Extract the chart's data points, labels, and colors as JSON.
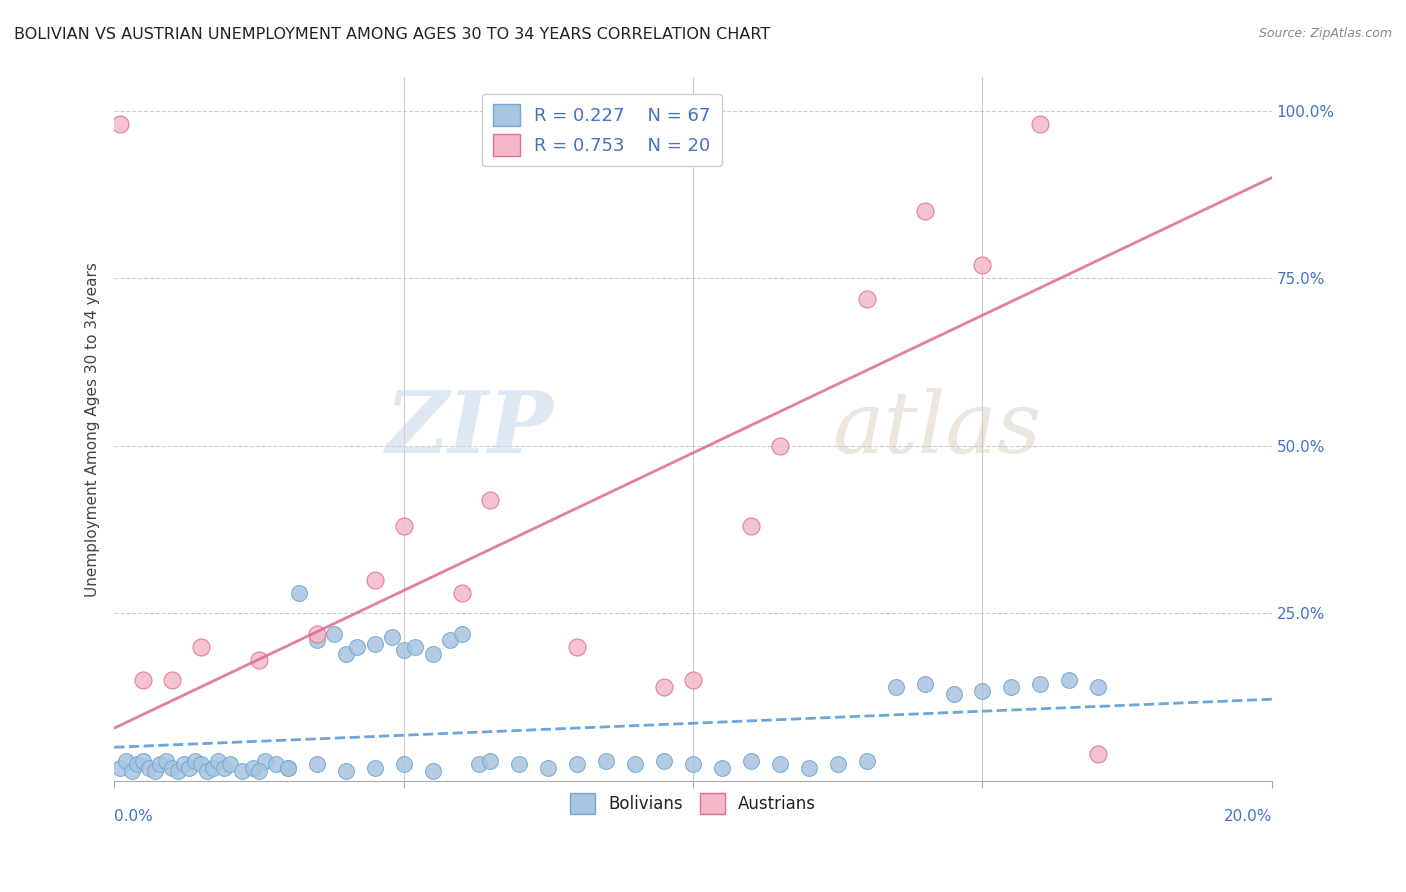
{
  "title": "BOLIVIAN VS AUSTRIAN UNEMPLOYMENT AMONG AGES 30 TO 34 YEARS CORRELATION CHART",
  "source": "Source: ZipAtlas.com",
  "ylabel": "Unemployment Among Ages 30 to 34 years",
  "xmin": 0.0,
  "xmax": 0.2,
  "ymin": 0.0,
  "ymax": 1.05,
  "yticks": [
    0.0,
    0.25,
    0.5,
    0.75,
    1.0
  ],
  "ytick_labels": [
    "",
    "25.0%",
    "50.0%",
    "75.0%",
    "100.0%"
  ],
  "bolivian_color": "#a8c4e0",
  "bolivian_edge": "#6fa8d0",
  "austrian_color": "#f4b8c8",
  "austrian_edge": "#e07090",
  "bolivian_line_color": "#5b9bd5",
  "austrian_line_color": "#e07090",
  "bolivian_r": 0.227,
  "bolivian_n": 67,
  "austrian_r": 0.753,
  "austrian_n": 20,
  "watermark_zip": "ZIP",
  "watermark_atlas": "atlas",
  "bolivian_data": [
    [
      0.001,
      0.02
    ],
    [
      0.002,
      0.03
    ],
    [
      0.003,
      0.015
    ],
    [
      0.004,
      0.025
    ],
    [
      0.005,
      0.03
    ],
    [
      0.006,
      0.02
    ],
    [
      0.007,
      0.015
    ],
    [
      0.008,
      0.025
    ],
    [
      0.009,
      0.03
    ],
    [
      0.01,
      0.02
    ],
    [
      0.011,
      0.015
    ],
    [
      0.012,
      0.025
    ],
    [
      0.013,
      0.02
    ],
    [
      0.014,
      0.03
    ],
    [
      0.015,
      0.025
    ],
    [
      0.016,
      0.015
    ],
    [
      0.017,
      0.02
    ],
    [
      0.018,
      0.03
    ],
    [
      0.019,
      0.02
    ],
    [
      0.02,
      0.025
    ],
    [
      0.022,
      0.015
    ],
    [
      0.024,
      0.02
    ],
    [
      0.026,
      0.03
    ],
    [
      0.028,
      0.025
    ],
    [
      0.03,
      0.02
    ],
    [
      0.032,
      0.28
    ],
    [
      0.035,
      0.21
    ],
    [
      0.038,
      0.22
    ],
    [
      0.04,
      0.19
    ],
    [
      0.042,
      0.2
    ],
    [
      0.045,
      0.205
    ],
    [
      0.048,
      0.215
    ],
    [
      0.05,
      0.195
    ],
    [
      0.052,
      0.2
    ],
    [
      0.055,
      0.19
    ],
    [
      0.058,
      0.21
    ],
    [
      0.06,
      0.22
    ],
    [
      0.063,
      0.025
    ],
    [
      0.065,
      0.03
    ],
    [
      0.07,
      0.025
    ],
    [
      0.075,
      0.02
    ],
    [
      0.08,
      0.025
    ],
    [
      0.085,
      0.03
    ],
    [
      0.09,
      0.025
    ],
    [
      0.095,
      0.03
    ],
    [
      0.1,
      0.025
    ],
    [
      0.105,
      0.02
    ],
    [
      0.11,
      0.03
    ],
    [
      0.115,
      0.025
    ],
    [
      0.12,
      0.02
    ],
    [
      0.125,
      0.025
    ],
    [
      0.13,
      0.03
    ],
    [
      0.135,
      0.14
    ],
    [
      0.14,
      0.145
    ],
    [
      0.145,
      0.13
    ],
    [
      0.15,
      0.135
    ],
    [
      0.155,
      0.14
    ],
    [
      0.16,
      0.145
    ],
    [
      0.165,
      0.15
    ],
    [
      0.17,
      0.14
    ],
    [
      0.025,
      0.015
    ],
    [
      0.03,
      0.02
    ],
    [
      0.035,
      0.025
    ],
    [
      0.04,
      0.015
    ],
    [
      0.045,
      0.02
    ],
    [
      0.05,
      0.025
    ],
    [
      0.055,
      0.015
    ]
  ],
  "austrian_data": [
    [
      0.001,
      0.98
    ],
    [
      0.005,
      0.15
    ],
    [
      0.01,
      0.15
    ],
    [
      0.015,
      0.2
    ],
    [
      0.025,
      0.18
    ],
    [
      0.035,
      0.22
    ],
    [
      0.045,
      0.3
    ],
    [
      0.05,
      0.38
    ],
    [
      0.06,
      0.28
    ],
    [
      0.065,
      0.42
    ],
    [
      0.08,
      0.2
    ],
    [
      0.095,
      0.14
    ],
    [
      0.1,
      0.15
    ],
    [
      0.11,
      0.38
    ],
    [
      0.115,
      0.5
    ],
    [
      0.13,
      0.72
    ],
    [
      0.14,
      0.85
    ],
    [
      0.15,
      0.77
    ],
    [
      0.16,
      0.98
    ],
    [
      0.17,
      0.04
    ]
  ]
}
